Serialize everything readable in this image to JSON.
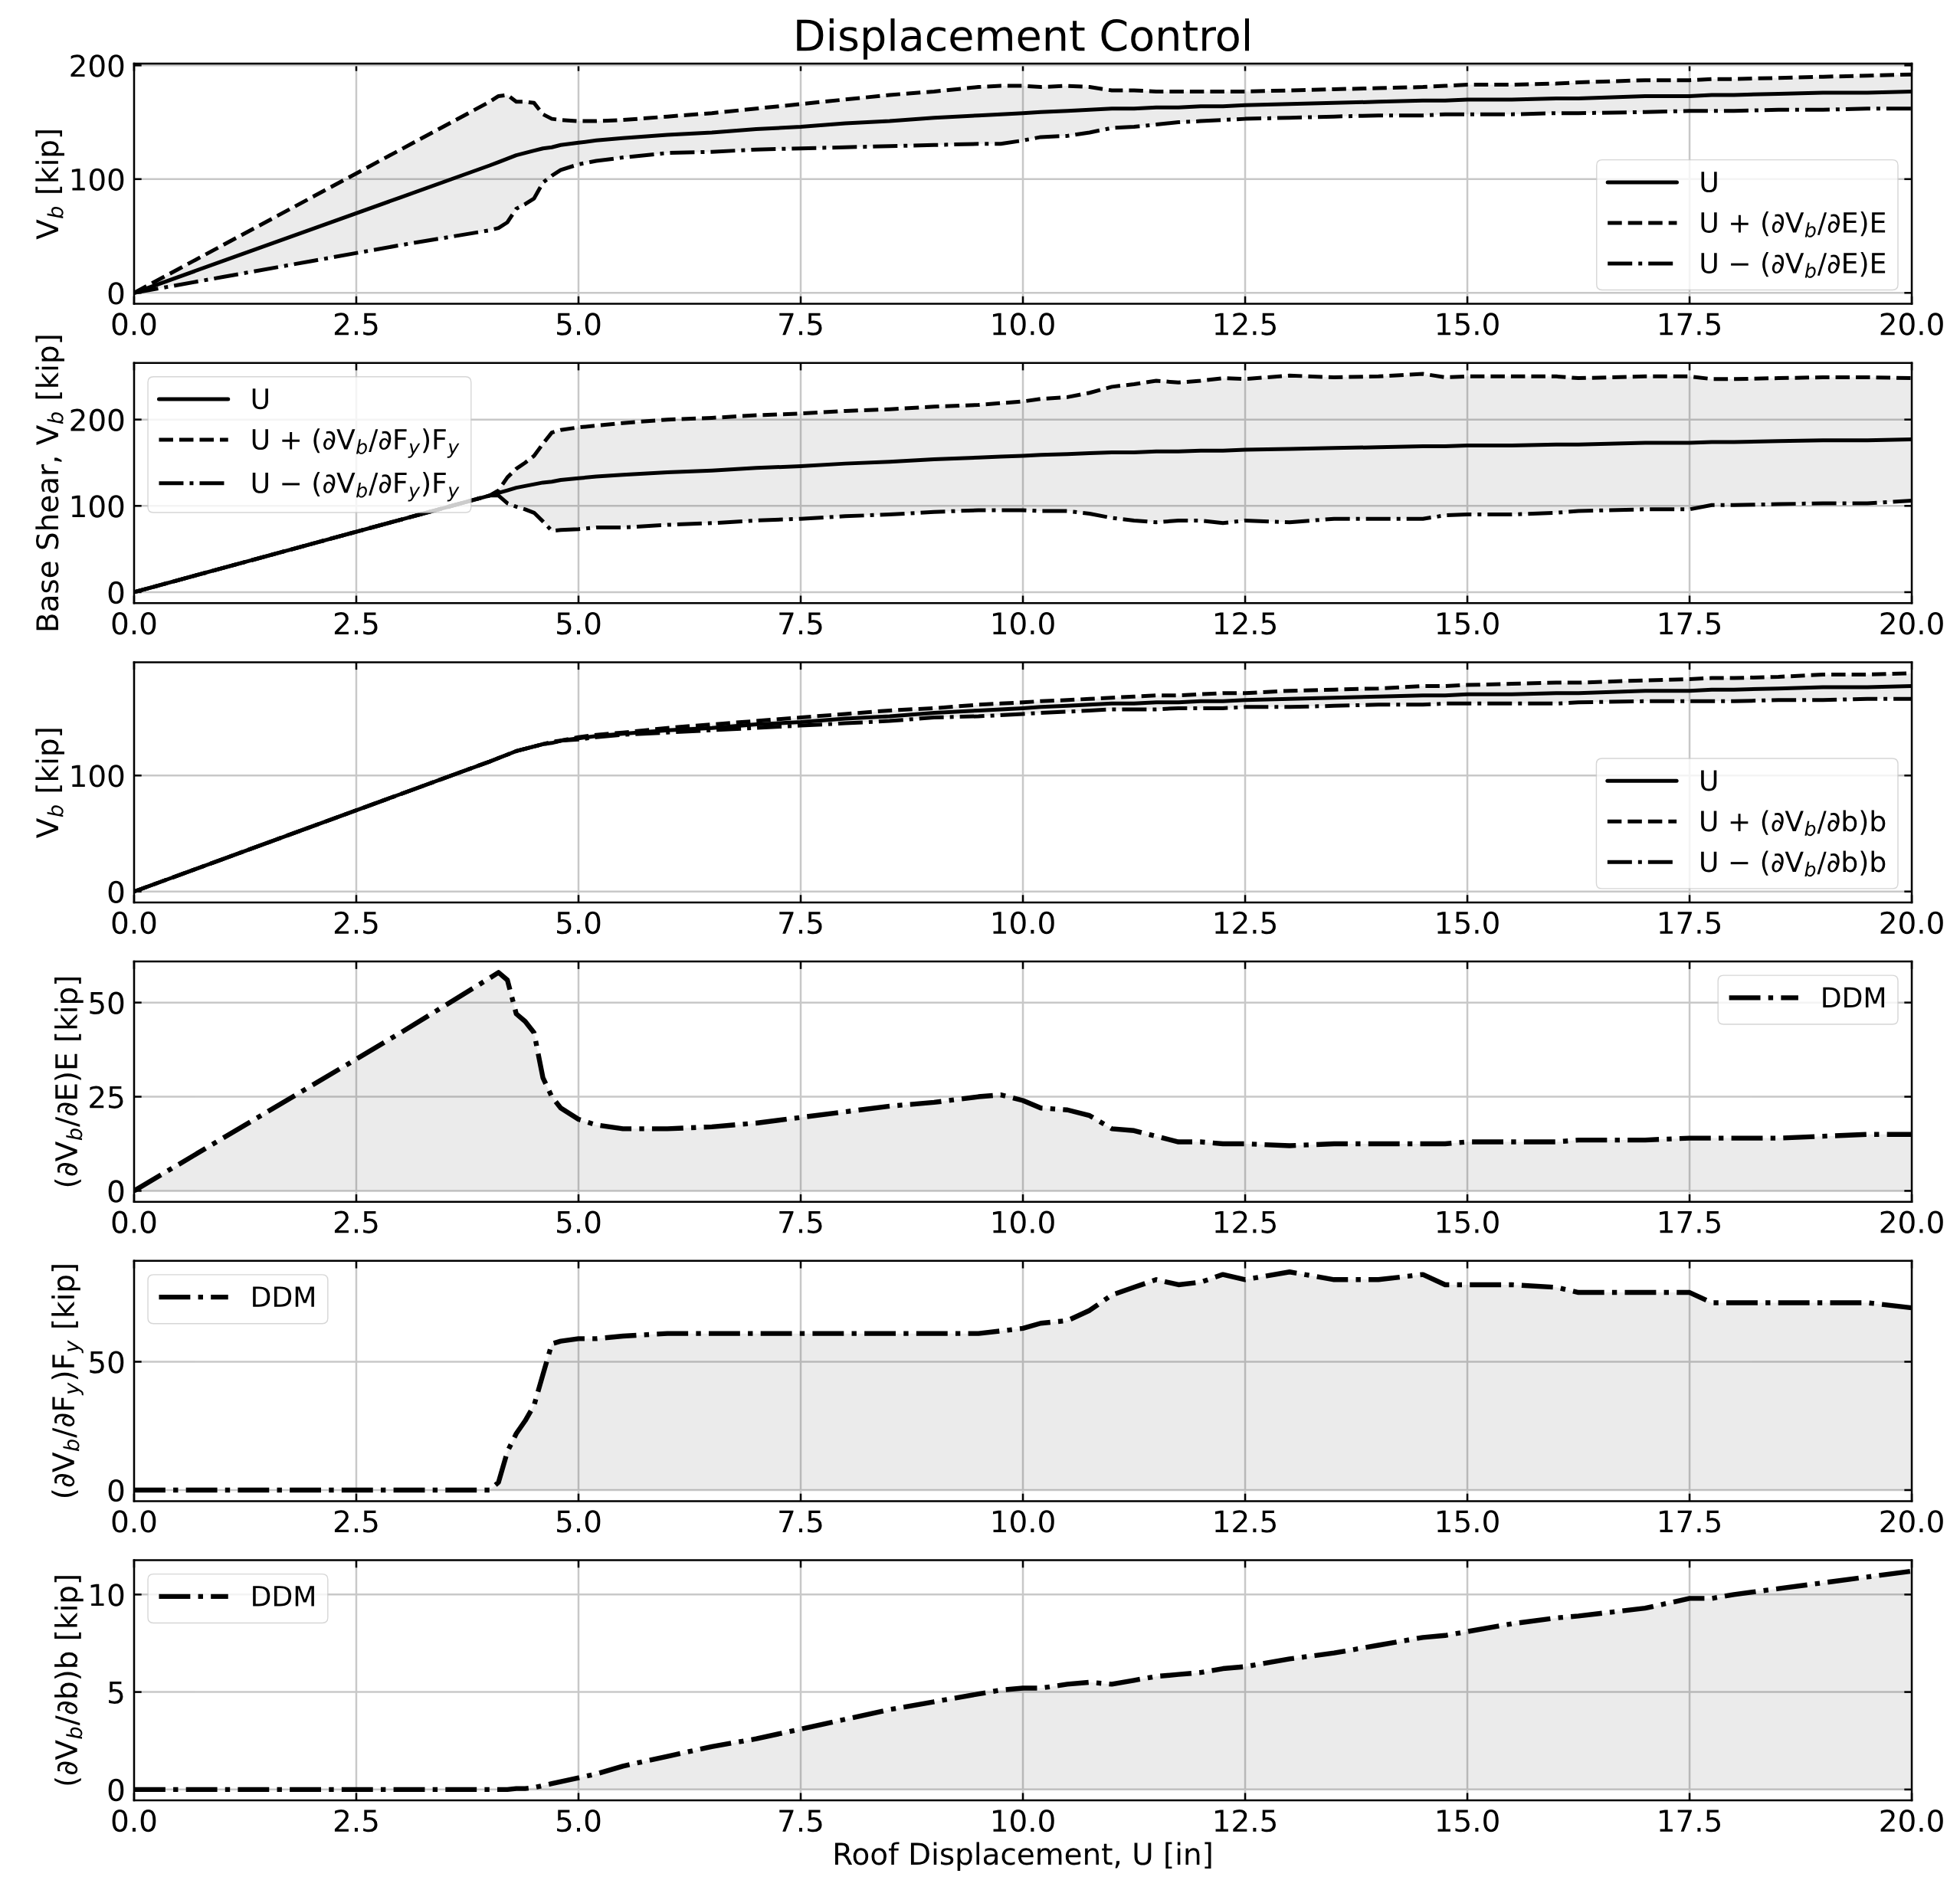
{
  "chart_data": [
    {
      "type": "line",
      "title": "Displacement Control",
      "ylabel": "V$_{b}$ [kip]",
      "x": [
        0,
        1,
        2,
        3,
        4,
        4.1,
        4.2,
        4.3,
        4.4,
        4.5,
        4.6,
        4.7,
        4.8,
        5,
        5.2,
        5.5,
        6,
        6.5,
        7,
        7.5,
        8,
        8.5,
        9,
        9.5,
        9.75,
        10,
        10.2,
        10.5,
        10.75,
        11,
        11.25,
        11.5,
        11.75,
        12,
        12.25,
        12.5,
        13,
        13.5,
        14,
        14.5,
        14.75,
        15,
        15.5,
        16,
        16.25,
        17,
        17.5,
        17.75,
        18,
        18.5,
        19,
        19.5,
        20
      ],
      "series": [
        {
          "name": "U",
          "color": "#000000",
          "line_style": "solid",
          "values": [
            0,
            28,
            56,
            84,
            112,
            115,
            118,
            121,
            123,
            125,
            127,
            128,
            130,
            132,
            134,
            136,
            139,
            141,
            144,
            146,
            149,
            151,
            154,
            156,
            157,
            158,
            159,
            160,
            161,
            162,
            162,
            163,
            163,
            164,
            164,
            165,
            166,
            167,
            168,
            169,
            169,
            170,
            170,
            171,
            171,
            173,
            173,
            174,
            174,
            175,
            176,
            176,
            177
          ],
          "lower": [
            0,
            14,
            28,
            42,
            55,
            57,
            62,
            74,
            78,
            83,
            97,
            103,
            108,
            113,
            116,
            119,
            123,
            124,
            126,
            127,
            128,
            129,
            130,
            131,
            131,
            134,
            137,
            138,
            141,
            145,
            146,
            148,
            150,
            151,
            152,
            153,
            154,
            155,
            156,
            156,
            157,
            157,
            157,
            158,
            158,
            159,
            160,
            160,
            160,
            161,
            161,
            162,
            162
          ],
          "upper": [
            0,
            42,
            84,
            126,
            168,
            173,
            174,
            168,
            168,
            167,
            157,
            153,
            152,
            151,
            151,
            152,
            155,
            158,
            162,
            166,
            170,
            174,
            177,
            181,
            182,
            182,
            181,
            182,
            181,
            178,
            178,
            177,
            177,
            177,
            177,
            177,
            178,
            179,
            180,
            181,
            182,
            183,
            183,
            184,
            185,
            187,
            187,
            188,
            188,
            189,
            190,
            191,
            192
          ]
        },
        {
          "name": "U + (∂V$_{b}$/∂E)E",
          "color": "#000000",
          "line_style": "dashed",
          "values": [
            0,
            42,
            84,
            126,
            168,
            173,
            174,
            168,
            168,
            167,
            157,
            153,
            152,
            151,
            151,
            152,
            155,
            158,
            162,
            166,
            170,
            174,
            177,
            181,
            182,
            182,
            181,
            182,
            181,
            178,
            178,
            177,
            177,
            177,
            177,
            177,
            178,
            179,
            180,
            181,
            182,
            183,
            183,
            184,
            185,
            187,
            187,
            188,
            188,
            189,
            190,
            191,
            192
          ]
        },
        {
          "name": "U − (∂V$_{b}$/∂E)E",
          "color": "#000000",
          "line_style": "dashdot",
          "values": [
            0,
            14,
            28,
            42,
            55,
            57,
            62,
            74,
            78,
            83,
            97,
            103,
            108,
            113,
            116,
            119,
            123,
            124,
            126,
            127,
            128,
            129,
            130,
            131,
            131,
            134,
            137,
            138,
            141,
            145,
            146,
            148,
            150,
            151,
            152,
            153,
            154,
            155,
            156,
            156,
            157,
            157,
            157,
            158,
            158,
            159,
            160,
            160,
            160,
            161,
            161,
            162,
            162
          ]
        }
      ],
      "xlim": [
        0,
        20
      ],
      "ylim": [
        -9.6,
        201.6
      ],
      "xticks": [
        {
          "value": 0,
          "label": "0.0"
        },
        {
          "value": 2.5,
          "label": "2.5"
        },
        {
          "value": 5,
          "label": "5.0"
        },
        {
          "value": 7.5,
          "label": "7.5"
        },
        {
          "value": 10,
          "label": "10.0"
        },
        {
          "value": 12.5,
          "label": "12.5"
        },
        {
          "value": 15,
          "label": "15.0"
        },
        {
          "value": 17.5,
          "label": "17.5"
        },
        {
          "value": 20,
          "label": "20.0"
        }
      ],
      "yticks": [
        0,
        100,
        200
      ],
      "grid": true,
      "legend": "bottom right"
    },
    {
      "type": "line",
      "ylabel": "Base Shear, V$_{b}$ [kip]",
      "x": [
        0,
        1,
        2,
        3,
        4,
        4.1,
        4.2,
        4.3,
        4.4,
        4.5,
        4.6,
        4.7,
        4.8,
        5,
        5.2,
        5.5,
        6,
        6.5,
        7,
        7.5,
        8,
        8.5,
        9,
        9.5,
        9.75,
        10,
        10.2,
        10.5,
        10.75,
        11,
        11.25,
        11.5,
        11.75,
        12,
        12.25,
        12.5,
        13,
        13.5,
        14,
        14.5,
        14.75,
        15,
        15.5,
        16,
        16.25,
        17,
        17.5,
        17.75,
        18,
        18.5,
        19,
        19.5,
        20
      ],
      "series": [
        {
          "name": "U",
          "color": "#000000",
          "line_style": "solid",
          "values": [
            0,
            28,
            56,
            84,
            112,
            115,
            118,
            121,
            123,
            125,
            127,
            128,
            130,
            132,
            134,
            136,
            139,
            141,
            144,
            146,
            149,
            151,
            154,
            156,
            157,
            158,
            159,
            160,
            161,
            162,
            162,
            163,
            163,
            164,
            164,
            165,
            166,
            167,
            168,
            169,
            169,
            170,
            170,
            171,
            171,
            173,
            173,
            174,
            174,
            175,
            176,
            176,
            177
          ],
          "lower": [
            0,
            28,
            56,
            84,
            112,
            112,
            103,
            99,
            96,
            92,
            82,
            71,
            72,
            73,
            75,
            75,
            78,
            80,
            83,
            85,
            88,
            90,
            93,
            95,
            95,
            95,
            94,
            94,
            91,
            86,
            83,
            81,
            83,
            83,
            80,
            83,
            81,
            85,
            85,
            85,
            89,
            90,
            90,
            92,
            94,
            96,
            96,
            101,
            101,
            102,
            103,
            103,
            106
          ],
          "upper": [
            0,
            28,
            56,
            84,
            112,
            118,
            133,
            143,
            150,
            158,
            172,
            185,
            188,
            191,
            193,
            196,
            200,
            202,
            205,
            207,
            210,
            212,
            215,
            217,
            219,
            221,
            224,
            226,
            231,
            238,
            241,
            245,
            243,
            245,
            248,
            247,
            251,
            249,
            250,
            253,
            249,
            250,
            250,
            250,
            248,
            250,
            250,
            247,
            247,
            248,
            249,
            249,
            248
          ]
        },
        {
          "name": "U + (∂V$_{b}$/∂F$_{y}$)F$_{y}$",
          "color": "#000000",
          "line_style": "dashed",
          "values": [
            0,
            28,
            56,
            84,
            112,
            118,
            133,
            143,
            150,
            158,
            172,
            185,
            188,
            191,
            193,
            196,
            200,
            202,
            205,
            207,
            210,
            212,
            215,
            217,
            219,
            221,
            224,
            226,
            231,
            238,
            241,
            245,
            243,
            245,
            248,
            247,
            251,
            249,
            250,
            253,
            249,
            250,
            250,
            250,
            248,
            250,
            250,
            247,
            247,
            248,
            249,
            249,
            248
          ]
        },
        {
          "name": "U − (∂V$_{b}$/∂F$_{y}$)F$_{y}$",
          "color": "#000000",
          "line_style": "dashdot",
          "values": [
            0,
            28,
            56,
            84,
            112,
            112,
            103,
            99,
            96,
            92,
            82,
            71,
            72,
            73,
            75,
            75,
            78,
            80,
            83,
            85,
            88,
            90,
            93,
            95,
            95,
            95,
            94,
            94,
            91,
            86,
            83,
            81,
            83,
            83,
            80,
            83,
            81,
            85,
            85,
            85,
            89,
            90,
            90,
            92,
            94,
            96,
            96,
            101,
            101,
            102,
            103,
            103,
            106
          ]
        }
      ],
      "xlim": [
        0,
        20
      ],
      "ylim": [
        -12.7,
        265.7
      ],
      "xticks": [
        {
          "value": 0,
          "label": "0.0"
        },
        {
          "value": 2.5,
          "label": "2.5"
        },
        {
          "value": 5,
          "label": "5.0"
        },
        {
          "value": 7.5,
          "label": "7.5"
        },
        {
          "value": 10,
          "label": "10.0"
        },
        {
          "value": 12.5,
          "label": "12.5"
        },
        {
          "value": 15,
          "label": "15.0"
        },
        {
          "value": 17.5,
          "label": "17.5"
        },
        {
          "value": 20,
          "label": "20.0"
        }
      ],
      "yticks": [
        0,
        100,
        200
      ],
      "grid": true,
      "legend": "top left"
    },
    {
      "type": "line",
      "ylabel": "V$_{b}$ [kip]",
      "x": [
        0,
        1,
        2,
        3,
        4,
        4.1,
        4.2,
        4.3,
        4.4,
        4.5,
        4.6,
        4.7,
        4.8,
        5,
        5.2,
        5.5,
        6,
        6.5,
        7,
        7.5,
        8,
        8.5,
        9,
        9.5,
        9.75,
        10,
        10.2,
        10.5,
        10.75,
        11,
        11.25,
        11.5,
        11.75,
        12,
        12.25,
        12.5,
        13,
        13.5,
        14,
        14.5,
        14.75,
        15,
        15.5,
        16,
        16.25,
        17,
        17.5,
        17.75,
        18,
        18.5,
        19,
        19.5,
        20
      ],
      "series": [
        {
          "name": "U",
          "color": "#000000",
          "line_style": "solid",
          "values": [
            0,
            28,
            56,
            84,
            112,
            115,
            118,
            121,
            123,
            125,
            127,
            128,
            130,
            132,
            134,
            136,
            139,
            141,
            144,
            146,
            149,
            151,
            154,
            156,
            157,
            158,
            159,
            160,
            161,
            162,
            162,
            163,
            163,
            164,
            164,
            165,
            166,
            167,
            168,
            169,
            169,
            170,
            170,
            171,
            171,
            173,
            173,
            174,
            174,
            175,
            176,
            176,
            177
          ],
          "lower": [
            0,
            28,
            56,
            84,
            112,
            115,
            118,
            121,
            123,
            125,
            127,
            128,
            130,
            131,
            133,
            135,
            137,
            139,
            141,
            143,
            145,
            147,
            150,
            151,
            152,
            153,
            154,
            155,
            156,
            157,
            157,
            157,
            158,
            158,
            158,
            159,
            159,
            160,
            161,
            161,
            162,
            162,
            162,
            162,
            163,
            164,
            164,
            164,
            164,
            165,
            165,
            166,
            166
          ],
          "upper": [
            0,
            28,
            56,
            84,
            112,
            115,
            118,
            121,
            123,
            125,
            127,
            129,
            130,
            133,
            135,
            137,
            141,
            144,
            147,
            150,
            153,
            156,
            158,
            161,
            162,
            163,
            164,
            165,
            166,
            167,
            168,
            169,
            169,
            170,
            171,
            171,
            173,
            174,
            175,
            177,
            177,
            178,
            179,
            180,
            180,
            182,
            183,
            184,
            184,
            185,
            187,
            187,
            188
          ]
        },
        {
          "name": "U + (∂V$_{b}$/∂b)b",
          "color": "#000000",
          "line_style": "dashed",
          "values": [
            0,
            28,
            56,
            84,
            112,
            115,
            118,
            121,
            123,
            125,
            127,
            129,
            130,
            133,
            135,
            137,
            141,
            144,
            147,
            150,
            153,
            156,
            158,
            161,
            162,
            163,
            164,
            165,
            166,
            167,
            168,
            169,
            169,
            170,
            171,
            171,
            173,
            174,
            175,
            177,
            177,
            178,
            179,
            180,
            180,
            182,
            183,
            184,
            184,
            185,
            187,
            187,
            188
          ]
        },
        {
          "name": "U − (∂V$_{b}$/∂b)b",
          "color": "#000000",
          "line_style": "dashdot",
          "values": [
            0,
            28,
            56,
            84,
            112,
            115,
            118,
            121,
            123,
            125,
            127,
            128,
            130,
            131,
            133,
            135,
            137,
            139,
            141,
            143,
            145,
            147,
            150,
            151,
            152,
            153,
            154,
            155,
            156,
            157,
            157,
            157,
            158,
            158,
            158,
            159,
            159,
            160,
            161,
            161,
            162,
            162,
            162,
            162,
            163,
            164,
            164,
            164,
            164,
            165,
            165,
            166,
            166
          ]
        }
      ],
      "xlim": [
        0,
        20
      ],
      "ylim": [
        -9.4,
        197.6
      ],
      "xticks": [
        {
          "value": 0,
          "label": "0.0"
        },
        {
          "value": 2.5,
          "label": "2.5"
        },
        {
          "value": 5,
          "label": "5.0"
        },
        {
          "value": 7.5,
          "label": "7.5"
        },
        {
          "value": 10,
          "label": "10.0"
        },
        {
          "value": 12.5,
          "label": "12.5"
        },
        {
          "value": 15,
          "label": "15.0"
        },
        {
          "value": 17.5,
          "label": "17.5"
        },
        {
          "value": 20,
          "label": "20.0"
        }
      ],
      "yticks": [
        0,
        100
      ],
      "grid": true,
      "legend": "bottom right"
    },
    {
      "type": "area",
      "ylabel": "(∂V$_{b}$/∂E)E [kip]",
      "x": [
        0,
        1,
        2,
        3,
        4,
        4.1,
        4.2,
        4.3,
        4.4,
        4.5,
        4.6,
        4.7,
        4.8,
        5,
        5.2,
        5.5,
        6,
        6.5,
        7,
        7.5,
        8,
        8.5,
        9,
        9.5,
        9.75,
        10,
        10.2,
        10.5,
        10.75,
        11,
        11.25,
        11.5,
        11.75,
        12,
        12.25,
        12.5,
        13,
        13.5,
        14,
        14.5,
        14.75,
        15,
        15.5,
        16,
        16.25,
        17,
        17.5,
        17.75,
        18,
        18.5,
        19,
        19.5,
        20
      ],
      "series": [
        {
          "name": "DDM",
          "color": "#000000",
          "line_style": "dashdot",
          "values": [
            0,
            14,
            28,
            42,
            56.5,
            58,
            56,
            47,
            45,
            42,
            30,
            25,
            22,
            19,
            17.5,
            16.5,
            16.5,
            17,
            18,
            19.5,
            21,
            22.5,
            23.5,
            25,
            25.5,
            24,
            22,
            21.5,
            20,
            16.5,
            16,
            14.5,
            13,
            13,
            12.5,
            12.5,
            12,
            12.5,
            12.5,
            12.5,
            12.5,
            13,
            13,
            13,
            13.5,
            13.5,
            14,
            14,
            14,
            14,
            14.5,
            15,
            15
          ]
        }
      ],
      "xlim": [
        0,
        20
      ],
      "ylim": [
        -2.9,
        60.9
      ],
      "xticks": [
        {
          "value": 0,
          "label": "0.0"
        },
        {
          "value": 2.5,
          "label": "2.5"
        },
        {
          "value": 5,
          "label": "5.0"
        },
        {
          "value": 7.5,
          "label": "7.5"
        },
        {
          "value": 10,
          "label": "10.0"
        },
        {
          "value": 12.5,
          "label": "12.5"
        },
        {
          "value": 15,
          "label": "15.0"
        },
        {
          "value": 17.5,
          "label": "17.5"
        },
        {
          "value": 20,
          "label": "20.0"
        }
      ],
      "yticks": [
        0,
        25,
        50
      ],
      "grid": true,
      "legend": "top right"
    },
    {
      "type": "area",
      "ylabel": "(∂V$_{b}$/∂F$_{y}$)F$_{y}$ [kip]",
      "x": [
        0,
        1,
        2,
        3,
        4,
        4.1,
        4.2,
        4.3,
        4.4,
        4.5,
        4.6,
        4.7,
        4.8,
        5,
        5.2,
        5.5,
        6,
        6.5,
        7,
        7.5,
        8,
        8.5,
        9,
        9.5,
        9.75,
        10,
        10.2,
        10.5,
        10.75,
        11,
        11.25,
        11.5,
        11.75,
        12,
        12.25,
        12.5,
        13,
        13.5,
        14,
        14.5,
        14.75,
        15,
        15.5,
        16,
        16.25,
        17,
        17.5,
        17.75,
        18,
        18.5,
        19,
        19.5,
        20
      ],
      "series": [
        {
          "name": "DDM",
          "color": "#000000",
          "line_style": "dashdot",
          "values": [
            0,
            0,
            0,
            0,
            0,
            3,
            15,
            22,
            27,
            33,
            45,
            57,
            58,
            59,
            59,
            60,
            61,
            61,
            61,
            61,
            61,
            61,
            61,
            61,
            62,
            63,
            65,
            66,
            70,
            76,
            79,
            82,
            80,
            81,
            84,
            82,
            85,
            82,
            82,
            84,
            80,
            80,
            80,
            79,
            77,
            77,
            77,
            73,
            73,
            73,
            73,
            73,
            71
          ]
        }
      ],
      "xlim": [
        0,
        20
      ],
      "ylim": [
        -4.3,
        89.3
      ],
      "xticks": [
        {
          "value": 0,
          "label": "0.0"
        },
        {
          "value": 2.5,
          "label": "2.5"
        },
        {
          "value": 5,
          "label": "5.0"
        },
        {
          "value": 7.5,
          "label": "7.5"
        },
        {
          "value": 10,
          "label": "10.0"
        },
        {
          "value": 12.5,
          "label": "12.5"
        },
        {
          "value": 15,
          "label": "15.0"
        },
        {
          "value": 17.5,
          "label": "17.5"
        },
        {
          "value": 20,
          "label": "20.0"
        }
      ],
      "yticks": [
        0,
        50
      ],
      "grid": true,
      "legend": "top left"
    },
    {
      "type": "area",
      "ylabel": "(∂V$_{b}$/∂b)b [kip]",
      "xlabel": "Roof Displacement, U [in]",
      "x": [
        0,
        1,
        2,
        3,
        4,
        4.1,
        4.2,
        4.3,
        4.4,
        4.5,
        4.6,
        4.7,
        4.8,
        5,
        5.2,
        5.5,
        6,
        6.5,
        7,
        7.5,
        8,
        8.5,
        9,
        9.5,
        9.75,
        10,
        10.2,
        10.5,
        10.75,
        11,
        11.25,
        11.5,
        11.75,
        12,
        12.25,
        12.5,
        13,
        13.5,
        14,
        14.5,
        14.75,
        15,
        15.5,
        16,
        16.25,
        17,
        17.5,
        17.75,
        18,
        18.5,
        19,
        19.5,
        20
      ],
      "series": [
        {
          "name": "DDM",
          "color": "#000000",
          "line_style": "dashdot",
          "values": [
            0,
            0,
            0,
            0,
            0,
            0,
            0,
            0.05,
            0.05,
            0.1,
            0.2,
            0.3,
            0.4,
            0.6,
            0.8,
            1.2,
            1.7,
            2.2,
            2.6,
            3.1,
            3.6,
            4.1,
            4.5,
            4.9,
            5.1,
            5.2,
            5.2,
            5.4,
            5.5,
            5.4,
            5.6,
            5.8,
            5.9,
            6,
            6.2,
            6.3,
            6.7,
            7,
            7.4,
            7.8,
            7.9,
            8.1,
            8.5,
            8.8,
            8.9,
            9.3,
            9.8,
            9.8,
            10,
            10.3,
            10.6,
            10.9,
            11.2
          ]
        }
      ],
      "xlim": [
        0,
        20
      ],
      "ylim": [
        -0.56,
        11.76
      ],
      "xticks": [
        {
          "value": 0,
          "label": "0.0"
        },
        {
          "value": 2.5,
          "label": "2.5"
        },
        {
          "value": 5,
          "label": "5.0"
        },
        {
          "value": 7.5,
          "label": "7.5"
        },
        {
          "value": 10,
          "label": "10.0"
        },
        {
          "value": 12.5,
          "label": "12.5"
        },
        {
          "value": 15,
          "label": "15.0"
        },
        {
          "value": 17.5,
          "label": "17.5"
        },
        {
          "value": 20,
          "label": "20.0"
        }
      ],
      "yticks": [
        0,
        5,
        10
      ],
      "grid": true,
      "legend": "top left"
    }
  ]
}
